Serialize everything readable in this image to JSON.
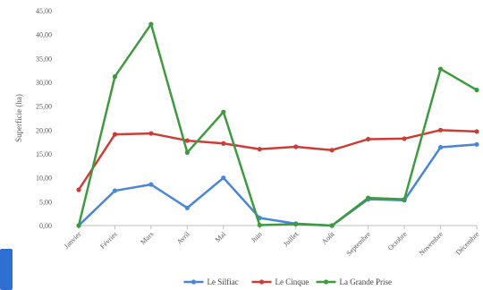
{
  "chart_data": {
    "type": "line",
    "ylabel": "Superficie (ha)",
    "ylim": [
      0,
      45
    ],
    "y_ticks": [
      "0,00",
      "5,00",
      "10,00",
      "15,00",
      "20,00",
      "25,00",
      "30,00",
      "35,00",
      "40,00",
      "45,00"
    ],
    "categories": [
      "Janvier",
      "Février",
      "Mars",
      "Avril",
      "Mai",
      "Juin",
      "Juillet",
      "Août",
      "Septembre",
      "Octobre",
      "Novembre",
      "Décembre"
    ],
    "grid": false,
    "legend_position": "bottom",
    "series": [
      {
        "name": "Le Silfiac",
        "color": "#4a86d8",
        "values": [
          0.0,
          7.3,
          8.6,
          3.7,
          10.0,
          1.6,
          0.4,
          0.0,
          5.5,
          5.3,
          16.4,
          17.0
        ]
      },
      {
        "name": "Le Cinque",
        "color": "#cc3d36",
        "values": [
          7.5,
          19.1,
          19.3,
          17.8,
          17.2,
          16.0,
          16.5,
          15.8,
          18.1,
          18.2,
          20.0,
          19.7
        ]
      },
      {
        "name": "La Grande Prise",
        "color": "#3f9a3f",
        "values": [
          0.0,
          31.2,
          42.2,
          15.3,
          23.8,
          0.1,
          0.3,
          0.0,
          5.8,
          5.5,
          32.8,
          28.4
        ]
      }
    ]
  },
  "colors": {
    "axis": "#bfbfbf",
    "accent_block": "#2f6fd1"
  }
}
